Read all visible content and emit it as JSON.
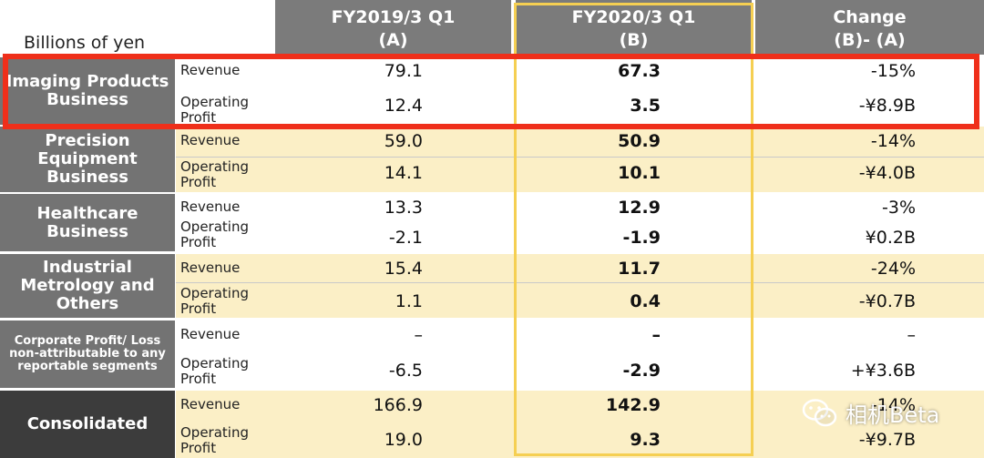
{
  "units": "Billions of yen",
  "columns": {
    "a": {
      "line1": "FY2019/3 Q1",
      "line2": "(A)"
    },
    "b": {
      "line1": "FY2020/3 Q1",
      "line2": "(B)"
    },
    "c": {
      "line1": "Change",
      "line2": "(B)- (A)"
    }
  },
  "segments": [
    {
      "name": "Imaging Products Business",
      "rows": [
        {
          "metric": "Revenue",
          "a": "79.1",
          "b": "67.3",
          "c": "-15%"
        },
        {
          "metric": "Operating Profit",
          "a": "12.4",
          "b": "3.5",
          "c": "-¥8.9B"
        }
      ]
    },
    {
      "name": "Precision Equipment Business",
      "rows": [
        {
          "metric": "Revenue",
          "a": "59.0",
          "b": "50.9",
          "c": "-14%"
        },
        {
          "metric": "Operating Profit",
          "a": "14.1",
          "b": "10.1",
          "c": "-¥4.0B"
        }
      ]
    },
    {
      "name": "Healthcare Business",
      "rows": [
        {
          "metric": "Revenue",
          "a": "13.3",
          "b": "12.9",
          "c": "-3%"
        },
        {
          "metric": "Operating Profit",
          "a": "-2.1",
          "b": "-1.9",
          "c": "¥0.2B"
        }
      ]
    },
    {
      "name": "Industrial Metrology and Others",
      "rows": [
        {
          "metric": "Revenue",
          "a": "15.4",
          "b": "11.7",
          "c": "-24%"
        },
        {
          "metric": "Operating Profit",
          "a": "1.1",
          "b": "0.4",
          "c": "-¥0.7B"
        }
      ]
    },
    {
      "name": "Corporate Profit/ Loss non-attributable to any reportable segments",
      "rows": [
        {
          "metric": "Revenue",
          "a": "–",
          "b": "–",
          "c": "–"
        },
        {
          "metric": "Operating Profit",
          "a": "-6.5",
          "b": "-2.9",
          "c": "+¥3.6B"
        }
      ]
    },
    {
      "name": "Consolidated",
      "rows": [
        {
          "metric": "Revenue",
          "a": "166.9",
          "b": "142.9",
          "c": "-14%"
        },
        {
          "metric": "Operating Profit",
          "a": "19.0",
          "b": "9.3",
          "c": "-¥9.7B"
        }
      ]
    }
  ],
  "watermark": {
    "text": "相机Beta",
    "icon": "wechat-icon"
  },
  "colors": {
    "highlight_box": "#f5cf52",
    "emphasis_box": "#ef2f1a"
  }
}
